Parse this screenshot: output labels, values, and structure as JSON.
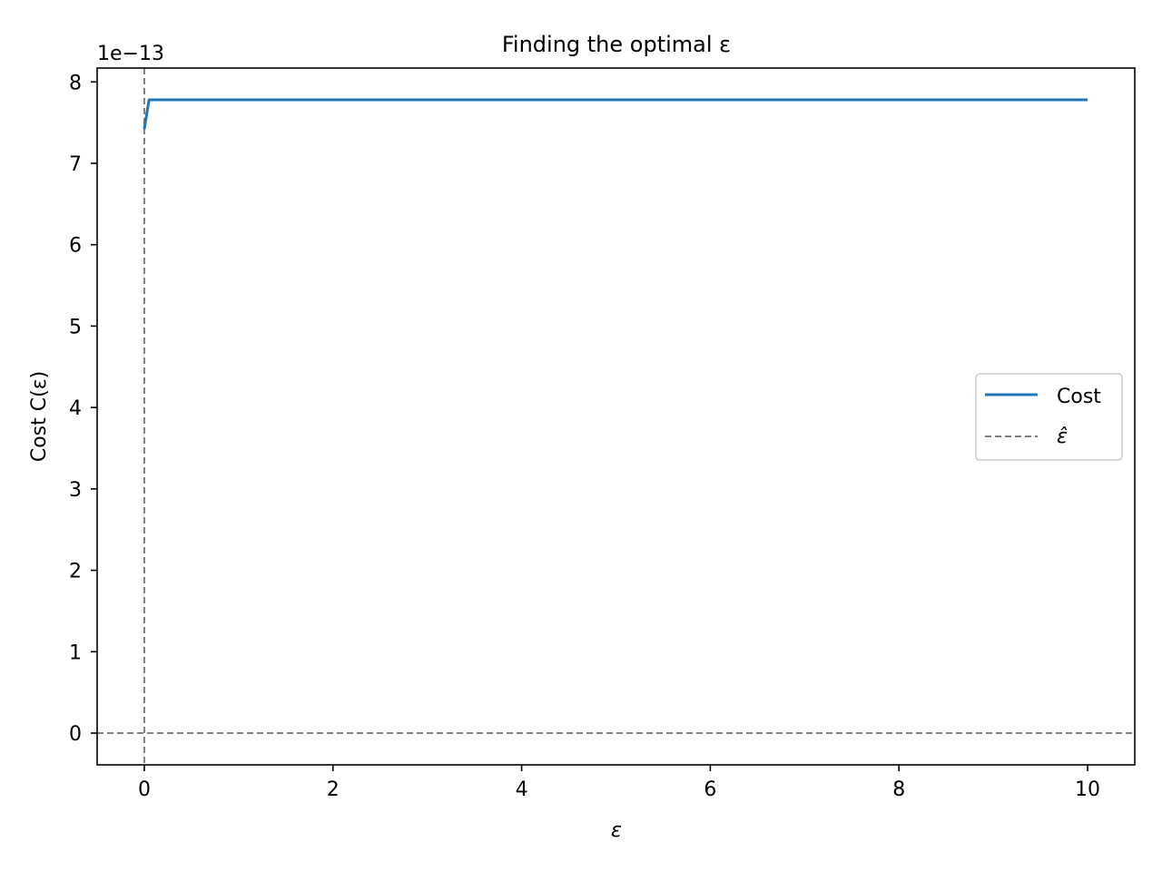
{
  "chart_data": {
    "type": "line",
    "title": "Finding the optimal ε",
    "xlabel": "ε",
    "ylabel": "Cost C(ε)",
    "y_offset_label": "1e−13",
    "xlim": [
      -0.5,
      10.5
    ],
    "ylim": [
      -0.39,
      8.17
    ],
    "x_ticks": [
      0,
      2,
      4,
      6,
      8,
      10
    ],
    "y_ticks": [
      0,
      1,
      2,
      3,
      4,
      5,
      6,
      7,
      8
    ],
    "grid": false,
    "legend_position": "center-right",
    "series": [
      {
        "name": "Cost",
        "color": "#1f77b4",
        "style": "solid",
        "x": [
          0.0,
          0.05,
          0.1,
          0.5,
          1,
          2,
          3,
          4,
          5,
          6,
          7,
          8,
          9,
          10
        ],
        "y": [
          7.42,
          7.78,
          7.78,
          7.78,
          7.78,
          7.78,
          7.78,
          7.78,
          7.78,
          7.78,
          7.78,
          7.78,
          7.78,
          7.78
        ]
      },
      {
        "name": "ε̂",
        "color": "#808080",
        "style": "dashed",
        "vline_x": 0.0,
        "hline_y": 0.0
      }
    ]
  }
}
